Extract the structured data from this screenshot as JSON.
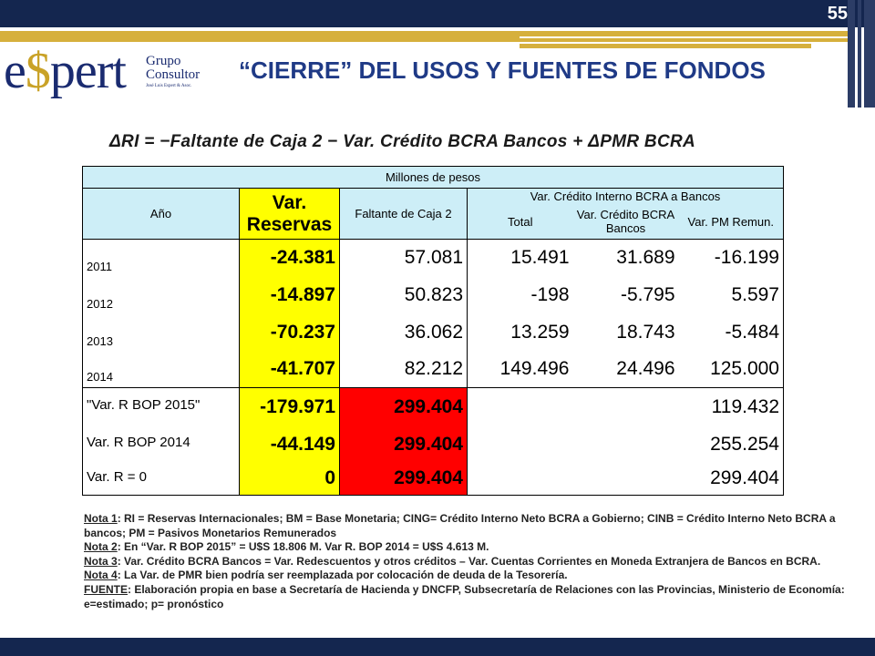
{
  "page_number": "55",
  "logo": {
    "word_left": "e",
    "word_dollar": "$",
    "word_right": "pert",
    "grupo_line1": "Grupo",
    "grupo_line2": "Consultor",
    "small": "José Luis Espert & Asoc."
  },
  "title": "“CIERRE”  DEL USOS Y FUENTES DE FONDOS",
  "formula": "ΔRI = −Faltante de Caja 2 − Var. Crédito BCRA Bancos + ΔPMR BCRA",
  "table": {
    "unit_header": "Millones de pesos",
    "col_year": "Año",
    "col_var_reservas": "Var. Reservas",
    "col_faltante": "Faltante de Caja 2",
    "group_header": "Var. Crédito Interno BCRA a Bancos",
    "col_total": "Total",
    "col_var_credito": "Var. Crédito BCRA Bancos",
    "col_var_pm": "Var. PM Remun.",
    "rows": [
      {
        "label": "2011",
        "reservas": "-24.381",
        "faltante": "57.081",
        "total": "15.491",
        "credito": "31.689",
        "pm": "-16.199"
      },
      {
        "label": "2012",
        "reservas": "-14.897",
        "faltante": "50.823",
        "total": "-198",
        "credito": "-5.795",
        "pm": "5.597"
      },
      {
        "label": "2013",
        "reservas": "-70.237",
        "faltante": "36.062",
        "total": "13.259",
        "credito": "18.743",
        "pm": "-5.484"
      },
      {
        "label": "2014",
        "reservas": "-41.707",
        "faltante": "82.212",
        "total": "149.496",
        "credito": "24.496",
        "pm": "125.000"
      }
    ],
    "scenarios": [
      {
        "label": "\"Var. R BOP 2015\"",
        "reservas": "-179.971",
        "faltante": "299.404",
        "pm": "119.432"
      },
      {
        "label": "Var. R BOP 2014",
        "reservas": "-44.149",
        "faltante": "299.404",
        "pm": "255.254"
      },
      {
        "label": "Var. R = 0",
        "reservas": "0",
        "faltante": "299.404",
        "pm": "299.404"
      }
    ]
  },
  "notes": [
    {
      "label": "Nota 1",
      "text": ": RI = Reservas Internacionales; BM = Base Monetaria; CING= Crédito Interno Neto BCRA a Gobierno; CINB = Crédito Interno Neto BCRA a bancos; PM = Pasivos Monetarios Remunerados"
    },
    {
      "label": "Nota 2",
      "text": ": En “Var. R BOP 2015” = U$S 18.806 M. Var R. BOP 2014 = U$S 4.613 M."
    },
    {
      "label": "Nota 3",
      "text": ": Var. Crédito BCRA Bancos = Var. Redescuentos y otros créditos – Var. Cuentas Corrientes en Moneda Extranjera de Bancos en BCRA."
    },
    {
      "label": "Nota 4",
      "text": ": La Var. de PMR bien podría ser reemplazada por colocación de deuda de la Tesorería."
    },
    {
      "label": "FUENTE",
      "text": ": Elaboración propia en base a Secretaría de Hacienda y DNCFP, Subsecretaría de Relaciones con las Provincias, Ministerio de Economía: e=estimado; p= pronóstico"
    }
  ],
  "colors": {
    "navy": "#14264f",
    "gold": "#d6b03c",
    "title_blue": "#1f3a86",
    "highlight_yellow": "#ffff00",
    "highlight_red": "#ff0000"
  }
}
